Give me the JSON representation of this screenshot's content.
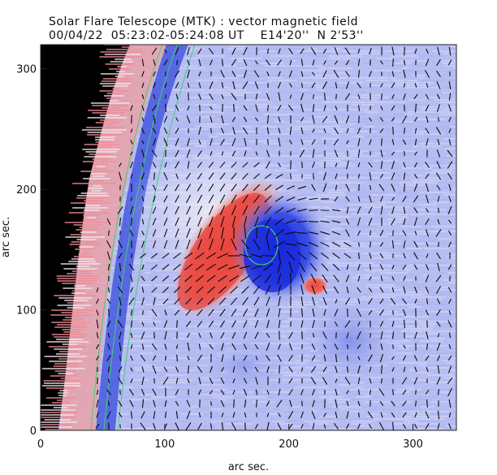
{
  "chart_data": {
    "type": "heatmap",
    "title": "Solar Flare Telescope (MTK) : vector magnetic field",
    "subtitle": "00/04/22  05:23:02-05:24:08 UT    E14'20''  N 2'53''",
    "xlabel": "arc sec.",
    "ylabel": "arc sec.",
    "xlim": [
      0,
      335
    ],
    "ylim": [
      0,
      320
    ],
    "xticks": [
      0,
      100,
      200,
      300
    ],
    "yticks": [
      0,
      100,
      200,
      300
    ],
    "grid": false,
    "colors": {
      "positive_polarity": "#e8504a",
      "negative_polarity": "#1f33e0",
      "background_field": "#b9bff2",
      "off_disk": "#000000",
      "contour": "#3fd070",
      "vectors": "#000000"
    },
    "features": [
      {
        "name": "positive region",
        "polarity": "positive",
        "center": [
          140,
          140
        ],
        "strength": 1.0
      },
      {
        "name": "negative region",
        "polarity": "negative",
        "center": [
          180,
          140
        ],
        "strength": 1.0
      },
      {
        "name": "small positive spot",
        "polarity": "positive",
        "center": [
          222,
          118
        ],
        "strength": 0.6
      }
    ]
  }
}
